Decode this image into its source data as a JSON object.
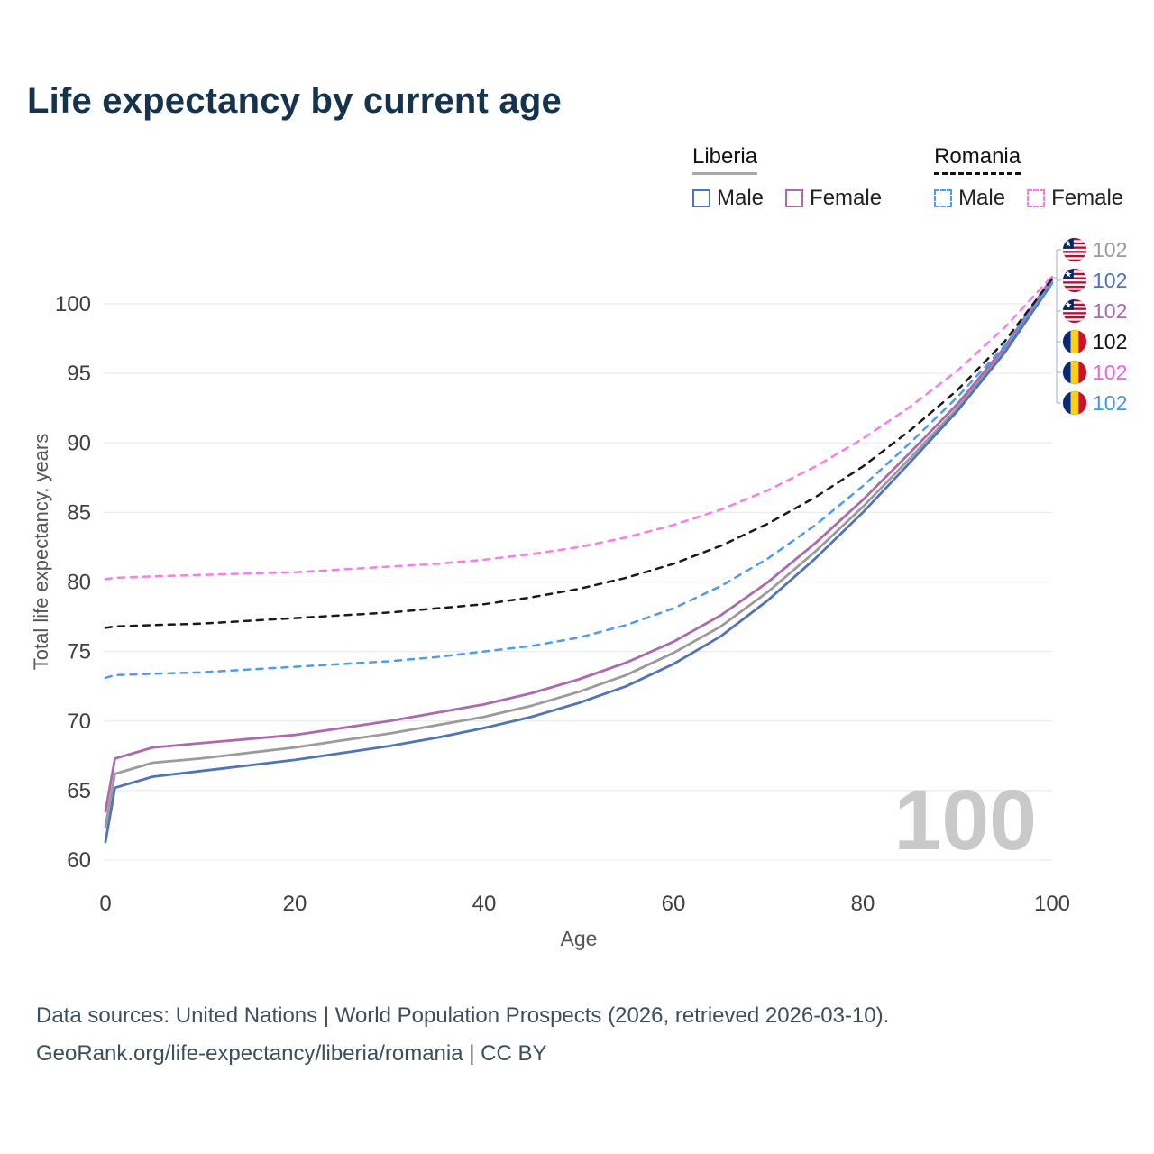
{
  "title": "Life expectancy by current age",
  "legend": {
    "groups": [
      {
        "name": "Liberia",
        "style": "solid",
        "items": [
          {
            "label": "Male",
            "color": "#4f74b8"
          },
          {
            "label": "Female",
            "color": "#ad69ae"
          }
        ]
      },
      {
        "name": "Romania",
        "style": "dashed",
        "items": [
          {
            "label": "Male",
            "color": "#4d9bf5"
          },
          {
            "label": "Female",
            "color": "#f97ce8"
          }
        ]
      }
    ]
  },
  "watermark": "100",
  "footer": {
    "line1": "Data sources: United Nations | World Population Prospects (2026, retrieved 2026-03-10).",
    "line2": "GeoRank.org/life-expectancy/liberia/romania | CC BY"
  },
  "chart_data": {
    "type": "line",
    "title": "Life expectancy by current age",
    "xlabel": "Age",
    "ylabel": "Total life expectancy, years",
    "xlim": [
      0,
      100
    ],
    "ylim": [
      60,
      102.5
    ],
    "x_ticks": [
      0,
      20,
      40,
      60,
      80,
      100
    ],
    "y_ticks": [
      60,
      65,
      70,
      75,
      80,
      85,
      90,
      95,
      100
    ],
    "grid": "horizontal",
    "legend_position": "top-right",
    "x": [
      0,
      1,
      5,
      10,
      15,
      20,
      25,
      30,
      35,
      40,
      45,
      50,
      55,
      60,
      65,
      70,
      75,
      80,
      85,
      90,
      95,
      100
    ],
    "series": [
      {
        "name": "Liberia Both",
        "country": "Liberia",
        "sex": "both",
        "color": "#9b9b9b",
        "dash": "solid",
        "values": [
          62.4,
          66.2,
          67.0,
          67.3,
          67.7,
          68.1,
          68.6,
          69.1,
          69.7,
          70.3,
          71.1,
          72.1,
          73.3,
          74.9,
          76.8,
          79.3,
          82.2,
          85.4,
          88.9,
          92.5,
          96.7,
          101.7
        ]
      },
      {
        "name": "Liberia Male",
        "country": "Liberia",
        "sex": "male",
        "color": "#4f74b8",
        "dash": "solid",
        "values": [
          61.3,
          65.2,
          66.0,
          66.4,
          66.8,
          67.2,
          67.7,
          68.2,
          68.8,
          69.5,
          70.3,
          71.3,
          72.5,
          74.1,
          76.1,
          78.7,
          81.7,
          85.0,
          88.6,
          92.3,
          96.5,
          101.5
        ]
      },
      {
        "name": "Liberia Female",
        "country": "Liberia",
        "sex": "female",
        "color": "#ad69ae",
        "dash": "solid",
        "values": [
          63.5,
          67.3,
          68.1,
          68.4,
          68.7,
          69.0,
          69.5,
          70.0,
          70.6,
          71.2,
          72.0,
          73.0,
          74.2,
          75.7,
          77.6,
          80.0,
          82.8,
          85.9,
          89.3,
          92.8,
          96.9,
          101.9
        ]
      },
      {
        "name": "Romania Both",
        "country": "Romania",
        "sex": "both",
        "color": "#1a1a1a",
        "dash": "dashed",
        "values": [
          76.7,
          76.8,
          76.9,
          77.0,
          77.2,
          77.4,
          77.6,
          77.8,
          78.1,
          78.4,
          78.9,
          79.5,
          80.3,
          81.3,
          82.6,
          84.2,
          86.1,
          88.3,
          90.9,
          93.8,
          97.3,
          101.8
        ]
      },
      {
        "name": "Romania Female",
        "country": "Romania",
        "sex": "female",
        "color": "#f97ce8",
        "dash": "dashed",
        "values": [
          80.2,
          80.3,
          80.4,
          80.5,
          80.6,
          80.7,
          80.9,
          81.1,
          81.3,
          81.6,
          82.0,
          82.5,
          83.2,
          84.1,
          85.2,
          86.6,
          88.3,
          90.3,
          92.6,
          95.2,
          98.3,
          102.0
        ]
      },
      {
        "name": "Romania Male",
        "country": "Romania",
        "sex": "male",
        "color": "#4d9bf5",
        "dash": "dashed",
        "values": [
          73.1,
          73.3,
          73.4,
          73.5,
          73.7,
          73.9,
          74.1,
          74.3,
          74.6,
          75.0,
          75.4,
          76.0,
          76.9,
          78.1,
          79.7,
          81.7,
          84.1,
          86.9,
          90.0,
          93.3,
          97.0,
          101.5
        ]
      }
    ],
    "end_labels": [
      {
        "flag": "liberia",
        "value": "102",
        "color": "#9b9b9b"
      },
      {
        "flag": "liberia",
        "value": "102",
        "color": "#4f74b8"
      },
      {
        "flag": "liberia",
        "value": "102",
        "color": "#ad69ae"
      },
      {
        "flag": "romania",
        "value": "102",
        "color": "#111111"
      },
      {
        "flag": "romania",
        "value": "102",
        "color": "#f75fe1"
      },
      {
        "flag": "romania",
        "value": "102",
        "color": "#3e97f7"
      }
    ]
  }
}
